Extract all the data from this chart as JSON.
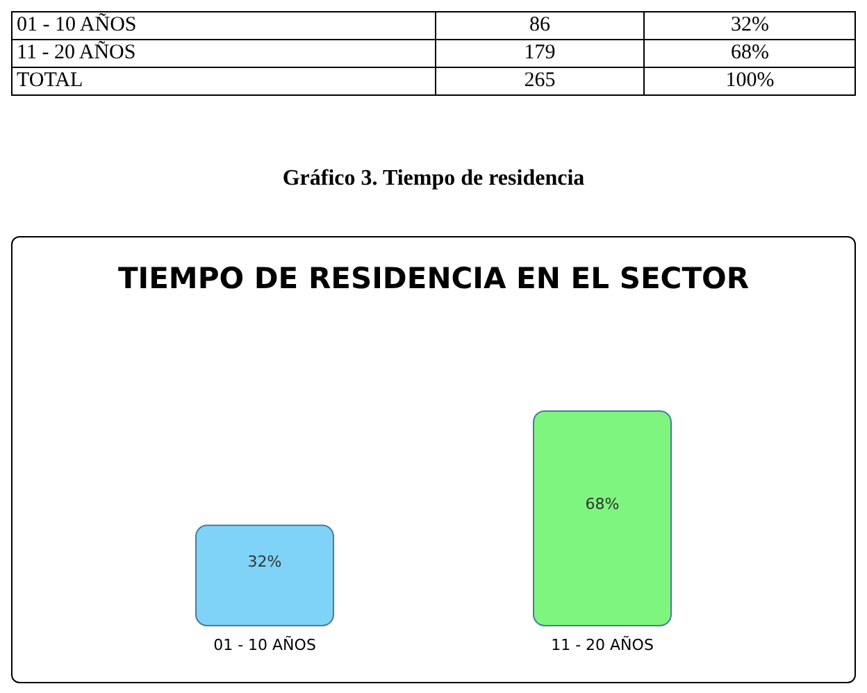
{
  "chart_data": [
    {
      "type": "other",
      "annotations": [
        "01 - 10 AÑOS",
        "86",
        "32%",
        "11 - 20 AÑOS",
        "179",
        "68%",
        "TOTAL",
        "265",
        "100%"
      ]
    },
    {
      "type": "bar",
      "title": "TIEMPO DE RESIDENCIA EN EL SECTOR",
      "annotations": [
        "Gráfico  3.  Tiempo de residencia"
      ],
      "categories": [
        "01 - 10 AÑOS",
        "11 - 20 AÑOS"
      ],
      "values": [
        32,
        68
      ],
      "value_labels": [
        "32%",
        "68%"
      ],
      "colors": [
        "#7fd3f7",
        "#7ef57e"
      ]
    }
  ]
}
